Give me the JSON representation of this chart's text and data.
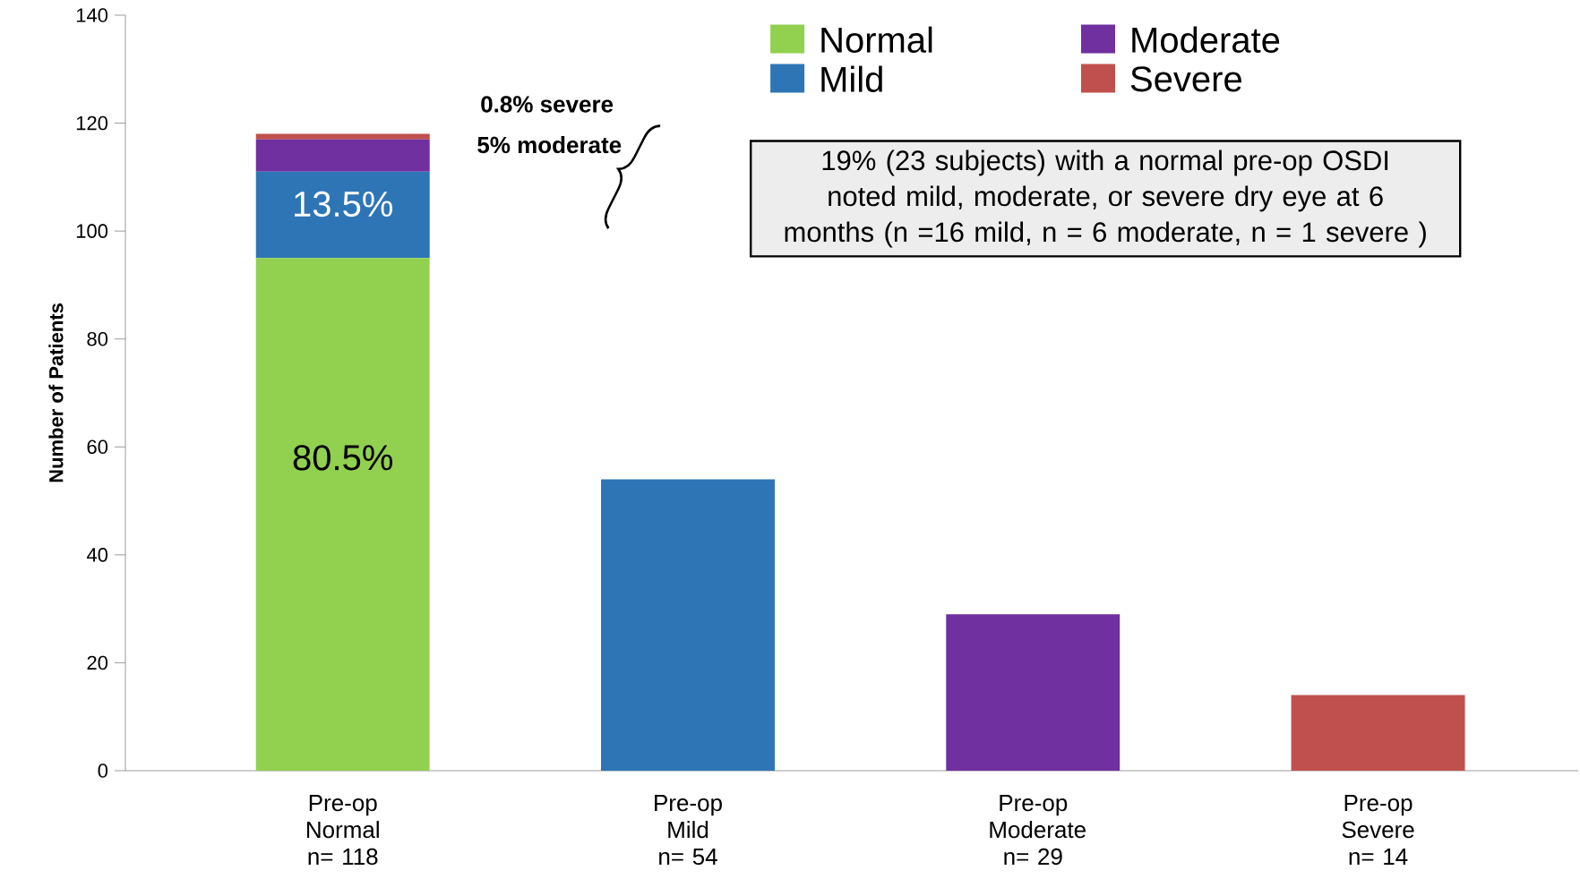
{
  "chart_data": {
    "type": "bar",
    "stacked": true,
    "ylabel": "Number of Patients",
    "categories": [
      "Pre-op Normal n= 118",
      "Pre-op Mild n= 54",
      "Pre-op Moderate n= 29",
      "Pre-op Severe n= 14"
    ],
    "series": [
      {
        "name": "Normal",
        "color": "#92d050",
        "values": [
          95,
          null,
          null,
          null
        ]
      },
      {
        "name": "Mild",
        "color": "#2e75b6",
        "values": [
          16,
          54,
          null,
          null
        ]
      },
      {
        "name": "Moderate",
        "color": "#7030a0",
        "values": [
          6,
          null,
          29,
          null
        ]
      },
      {
        "name": "Severe",
        "color": "#c0504d",
        "values": [
          1,
          null,
          null,
          14
        ]
      }
    ],
    "ylim": [
      0,
      140
    ],
    "yticks": [
      0,
      20,
      40,
      60,
      80,
      100,
      120,
      140
    ],
    "legend": "top right",
    "annotations": [
      "80.5%",
      "13.5%",
      "0.8% severe",
      "5% moderate",
      "19% (23 subjects) with a normal pre-op OSDI noted mild, moderate, or severe dry eye at 6 months (n =16 mild, n = 6 moderate, n = 1 severe )"
    ]
  }
}
